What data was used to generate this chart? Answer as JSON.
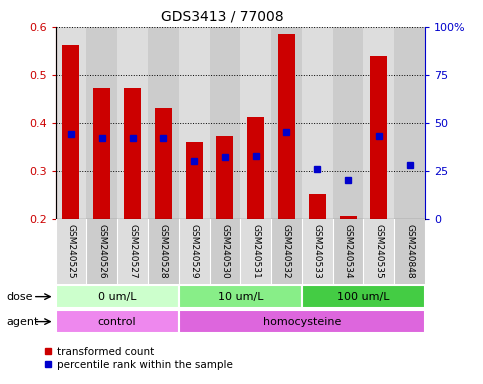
{
  "title": "GDS3413 / 77008",
  "samples": [
    "GSM240525",
    "GSM240526",
    "GSM240527",
    "GSM240528",
    "GSM240529",
    "GSM240530",
    "GSM240531",
    "GSM240532",
    "GSM240533",
    "GSM240534",
    "GSM240535",
    "GSM240848"
  ],
  "transformed_count": [
    0.562,
    0.472,
    0.472,
    0.432,
    0.36,
    0.373,
    0.413,
    0.585,
    0.252,
    0.205,
    0.54,
    0.2
  ],
  "percentile_rank": [
    44,
    42,
    42,
    42,
    30,
    32,
    33,
    45,
    26,
    20,
    43,
    28
  ],
  "bar_bottom": 0.2,
  "ylim_left": [
    0.2,
    0.6
  ],
  "ylim_right": [
    0,
    100
  ],
  "yticks_left": [
    0.2,
    0.3,
    0.4,
    0.5,
    0.6
  ],
  "yticks_right": [
    0,
    25,
    50,
    75,
    100
  ],
  "yticklabels_right": [
    "0",
    "25",
    "50",
    "75",
    "100%"
  ],
  "bar_color": "#cc0000",
  "dot_color": "#0000cc",
  "dose_groups": [
    {
      "label": "0 um/L",
      "start": 0,
      "end": 4,
      "color": "#ccffcc"
    },
    {
      "label": "10 um/L",
      "start": 4,
      "end": 8,
      "color": "#88ee88"
    },
    {
      "label": "100 um/L",
      "start": 8,
      "end": 12,
      "color": "#44cc44"
    }
  ],
  "agent_groups": [
    {
      "label": "control",
      "start": 0,
      "end": 4,
      "color": "#ee88ee"
    },
    {
      "label": "homocysteine",
      "start": 4,
      "end": 12,
      "color": "#dd66dd"
    }
  ],
  "dose_label": "dose",
  "agent_label": "agent",
  "legend_bar_label": "transformed count",
  "legend_dot_label": "percentile rank within the sample",
  "bar_width": 0.55,
  "col_bg_even": "#dddddd",
  "col_bg_odd": "#cccccc"
}
